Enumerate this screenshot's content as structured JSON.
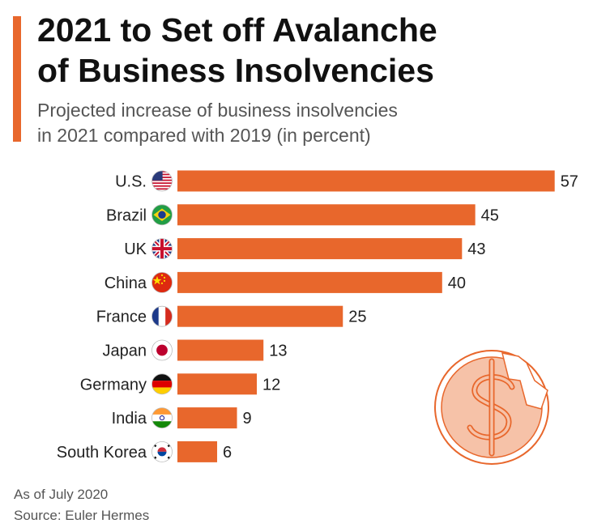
{
  "header": {
    "title_line1": "2021 to Set off Avalanche",
    "title_line2": "of Business Insolvencies",
    "subtitle_line1": "Projected increase of business insolvencies",
    "subtitle_line2": "in 2021 compared with 2019 (in percent)"
  },
  "footer": {
    "note": "As of July 2020",
    "source": "Source: Euler Hermes"
  },
  "colors": {
    "bar": "#e8672c",
    "accent": "#e8672c",
    "decoration": "#e8672c"
  },
  "chart_data": {
    "type": "bar",
    "orientation": "horizontal",
    "categories": [
      "U.S.",
      "Brazil",
      "UK",
      "China",
      "France",
      "Japan",
      "Germany",
      "India",
      "South Korea"
    ],
    "values": [
      57,
      45,
      43,
      40,
      25,
      13,
      12,
      9,
      6
    ],
    "flags": [
      "us-flag-icon",
      "brazil-flag-icon",
      "uk-flag-icon",
      "china-flag-icon",
      "france-flag-icon",
      "japan-flag-icon",
      "germany-flag-icon",
      "india-flag-icon",
      "south-korea-flag-icon"
    ],
    "title": "2021 to Set off Avalanche of Business Insolvencies",
    "subtitle": "Projected increase of business insolvencies in 2021 compared with 2019 (in percent)",
    "xlim": [
      0,
      57
    ],
    "grid": false,
    "data_labels": true
  }
}
